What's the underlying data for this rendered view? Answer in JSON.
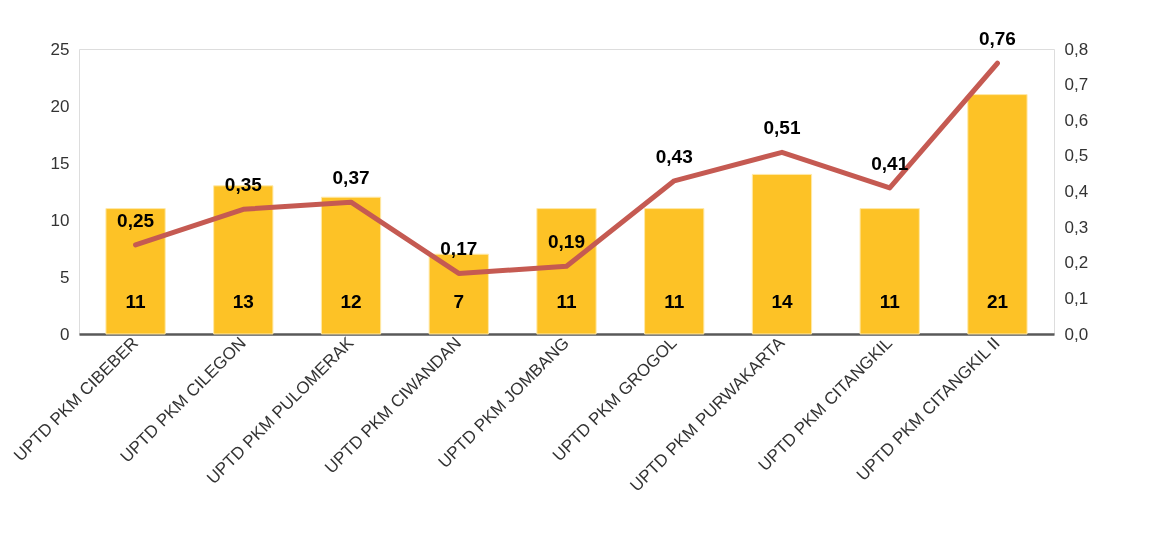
{
  "chart_data": {
    "type": "bar",
    "categories": [
      "UPTD PKM CIBEBER",
      "UPTD PKM CILEGON",
      "UPTD PKM PULOMERAK",
      "UPTD PKM CIWANDAN",
      "UPTD PKM JOMBANG",
      "UPTD PKM GROGOL",
      "UPTD PKM PURWAKARTA",
      "UPTD PKM CITANGKIL",
      "UPTD PKM CITANGKIL II"
    ],
    "series": [
      {
        "color": "#fdc226",
        "values": [
          11,
          13,
          12,
          7,
          11,
          11,
          14,
          11,
          21
        ],
        "value_labels": [
          "11",
          "13",
          "12",
          "7",
          "11",
          "11",
          "14",
          "11",
          "21"
        ]
      },
      {
        "type": "line",
        "axis": "y2",
        "color": "#c55a52",
        "values": [
          0.25,
          0.35,
          0.37,
          0.17,
          0.19,
          0.43,
          0.51,
          0.41,
          0.76
        ],
        "value_labels": [
          "0,25",
          "0,35",
          "0,37",
          "0,17",
          "0,19",
          "0,43",
          "0,51",
          "0,41",
          "0,76"
        ]
      }
    ],
    "ylim": [
      0,
      25
    ],
    "yticks": [
      0,
      5,
      10,
      15,
      20,
      25
    ],
    "y2lim": [
      0,
      0.8
    ],
    "y2ticks": [
      {
        "value": 0,
        "label": "0,0"
      },
      {
        "value": 0.1,
        "label": "0,1"
      },
      {
        "value": 0.2,
        "label": "0,2"
      },
      {
        "value": 0.3,
        "label": "0,3"
      },
      {
        "value": 0.4,
        "label": "0,4"
      },
      {
        "value": 0.5,
        "label": "0,5"
      },
      {
        "value": 0.6,
        "label": "0,6"
      },
      {
        "value": 0.7,
        "label": "0,7"
      },
      {
        "value": 0.8,
        "label": "0,8"
      }
    ],
    "grid": false,
    "marker": "none",
    "line_style": "solid"
  }
}
